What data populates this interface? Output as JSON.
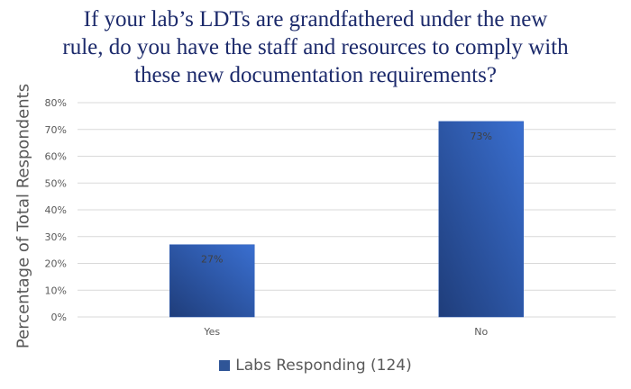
{
  "chart_data": {
    "type": "bar",
    "title_lines": [
      "If your lab’s LDTs are grandfathered under the new",
      "rule, do you have the staff and resources to comply with",
      "these new documentation requirements?"
    ],
    "xlabel": "",
    "ylabel": "Percentage of Total Respondents",
    "categories": [
      "Yes",
      "No"
    ],
    "series": [
      {
        "name": "Labs Responding (124)",
        "values": [
          27,
          73
        ]
      }
    ],
    "data_labels": [
      "27%",
      "73%"
    ],
    "ylim": [
      0,
      80
    ],
    "yticks": [
      "0%",
      "10%",
      "20%",
      "30%",
      "40%",
      "50%",
      "60%",
      "70%",
      "80%"
    ],
    "grid": true,
    "legend_position": "bottom",
    "colors": {
      "bar_light": "#3a6fd0",
      "bar_dark": "#1f3d7a",
      "title": "#1c2a6b",
      "grid": "#d9d9d9"
    }
  }
}
